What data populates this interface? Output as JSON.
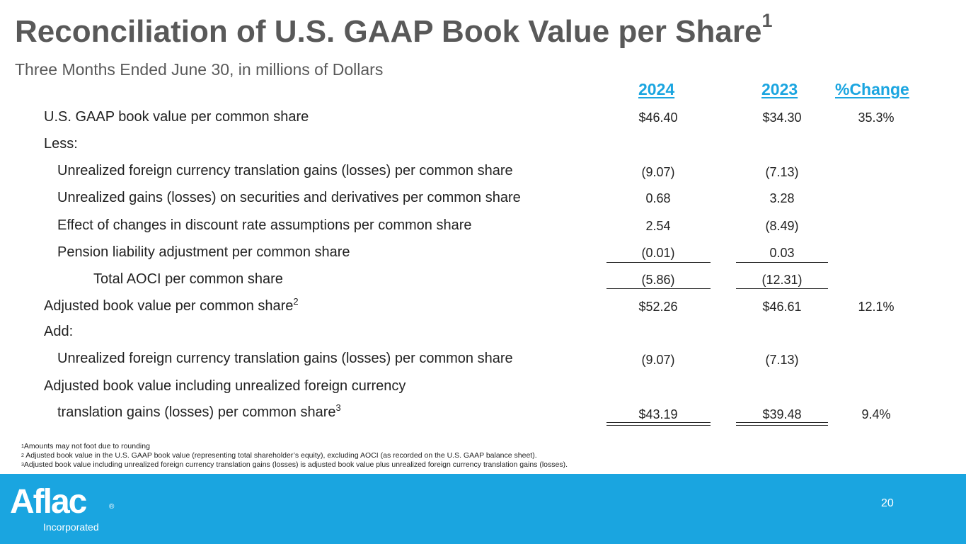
{
  "header": {
    "title": "Reconciliation of U.S. GAAP Book Value per Share",
    "title_sup": "1",
    "subtitle": "Three Months Ended June 30, in millions of Dollars"
  },
  "columns": {
    "col_2024": "2024",
    "col_2023": "2023",
    "col_change": "%Change"
  },
  "rows": {
    "gaap_bv": {
      "label": "U.S. GAAP book value per common share",
      "v2024": "$46.40",
      "v2023": "$34.30",
      "change": "35.3%"
    },
    "less": {
      "label": "Less:"
    },
    "fx_gains": {
      "label": "Unrealized foreign currency translation gains (losses) per common share",
      "v2024": "(9.07)",
      "v2023": "(7.13)"
    },
    "sec_gains": {
      "label": "Unrealized gains (losses) on securities and derivatives per common share",
      "v2024": "0.68",
      "v2023": "3.28"
    },
    "discount_rate": {
      "label": "Effect of changes in discount rate assumptions per common share",
      "v2024": "2.54",
      "v2023": "(8.49)"
    },
    "pension": {
      "label": "Pension liability adjustment per common share",
      "v2024": "(0.01)",
      "v2023": "0.03"
    },
    "total_aoci": {
      "label": "Total AOCI per common share",
      "v2024": "(5.86)",
      "v2023": "(12.31)"
    },
    "adj_bv": {
      "label": "Adjusted book value per common share",
      "sup": "2",
      "v2024": "$52.26",
      "v2023": "$46.61",
      "change": "12.1%"
    },
    "add": {
      "label": "Add:"
    },
    "fx_gains_add": {
      "label": "Unrealized foreign currency translation gains (losses) per common share",
      "v2024": "(9.07)",
      "v2023": "(7.13)"
    },
    "adj_bv_fx": {
      "label_line1": "Adjusted book value including unrealized foreign currency",
      "label_line2": "translation gains (losses) per common share",
      "sup": "3",
      "v2024": "$43.19",
      "v2023": "$39.48",
      "change": "9.4%"
    }
  },
  "footnotes": {
    "n1_mark": "1",
    "n1": "Amounts may not foot due to rounding",
    "n2_mark": "2",
    "n2": " Adjusted book value in the U.S. GAAP book value (representing total shareholder’s equity), excluding AOCI (as recorded on the U.S. GAAP balance sheet).",
    "n3_mark": "3",
    "n3": "Adjusted book value including unrealized foreign currency translation gains (losses) is adjusted book value plus unrealized foreign currency translation gains (losses)."
  },
  "footer": {
    "logo_text": "Aflac",
    "logo_reg": "®",
    "logo_sub": "Incorporated",
    "page_number": "20"
  },
  "colors": {
    "accent": "#1aa5e0",
    "title": "#595959"
  }
}
